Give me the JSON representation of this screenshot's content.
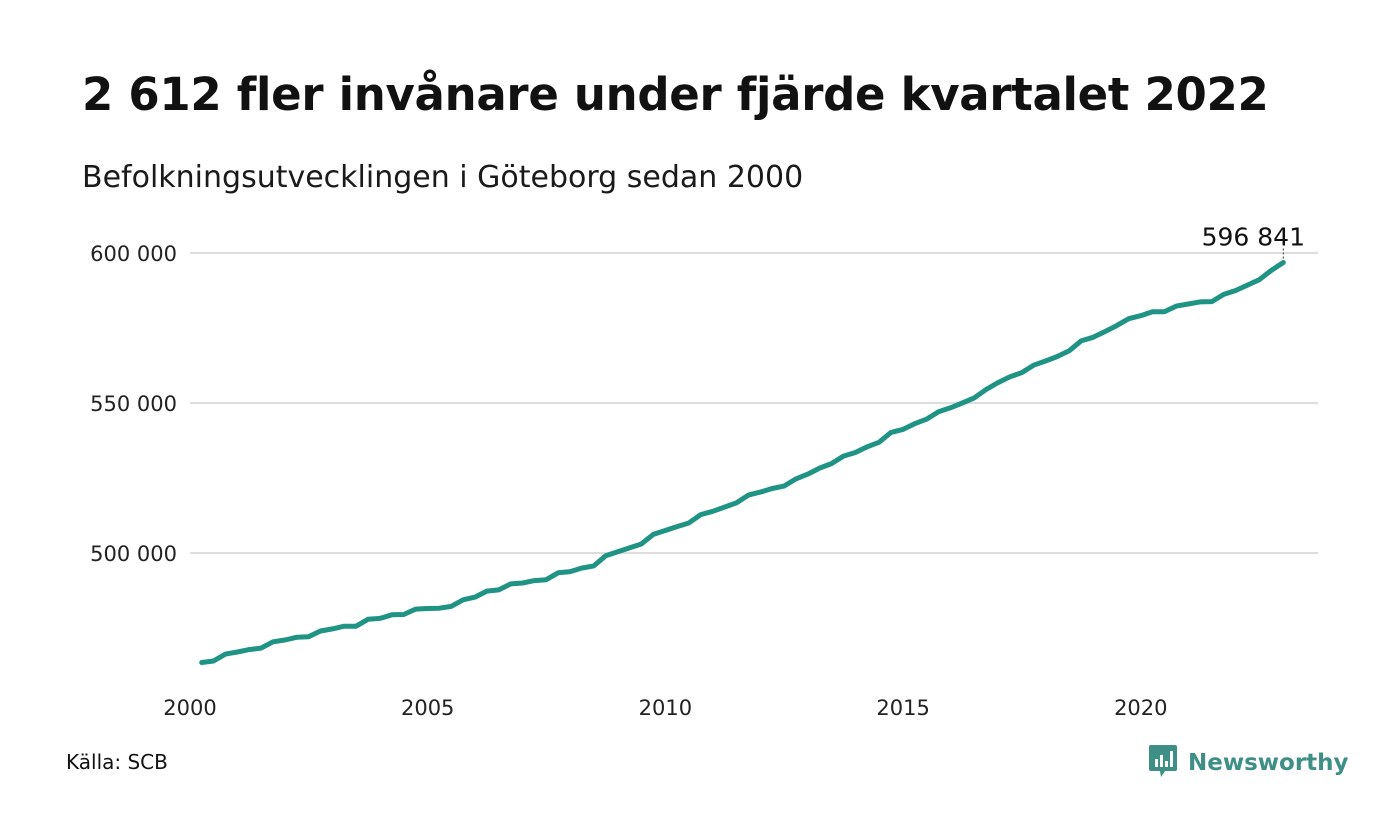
{
  "header": {
    "title": "2 612 fler invånare under fjärde kvartalet 2022",
    "subtitle": "Befolkningsutvecklingen i Göteborg sedan 2000"
  },
  "footer": {
    "source": "Källa: SCB",
    "brand": "Newsworthy",
    "brand_icon": "bar-chart-speech-bubble-icon"
  },
  "colors": {
    "line": "#1f9384",
    "grid": "#dddddd",
    "brand": "#3e8f86"
  },
  "chart_data": {
    "type": "line",
    "title": "2 612 fler invånare under fjärde kvartalet 2022",
    "subtitle": "Befolkningsutvecklingen i Göteborg sedan 2000",
    "xlabel": "",
    "ylabel": "",
    "x_ticks": [
      "2000",
      "2005",
      "2010",
      "2015",
      "2020"
    ],
    "x_tick_values": [
      2000,
      2005,
      2010,
      2015,
      2020
    ],
    "y_ticks": [
      "500 000",
      "550 000",
      "600 000"
    ],
    "y_tick_values": [
      500000,
      550000,
      600000
    ],
    "grid": "horizontal",
    "legend": "none",
    "last_value_label": "596 841",
    "series": [
      {
        "x": [
          "2000-03-31",
          "2000-06-30",
          "2000-09-30",
          "2000-12-31",
          "2001-03-31",
          "2001-06-30",
          "2001-09-30",
          "2001-12-31",
          "2002-03-31",
          "2002-06-30",
          "2002-09-30",
          "2002-12-31",
          "2003-03-31",
          "2003-06-30",
          "2003-09-30",
          "2003-12-31",
          "2004-03-31",
          "2004-06-30",
          "2004-09-30",
          "2004-12-31",
          "2005-03-31",
          "2005-06-30",
          "2005-09-30",
          "2005-12-31",
          "2006-03-31",
          "2006-06-30",
          "2006-09-30",
          "2006-12-31",
          "2007-03-31",
          "2007-06-30",
          "2007-09-30",
          "2007-12-31",
          "2008-03-31",
          "2008-06-30",
          "2008-09-30",
          "2008-12-31",
          "2009-03-31",
          "2009-06-30",
          "2009-09-30",
          "2009-12-31",
          "2010-03-31",
          "2010-06-30",
          "2010-09-30",
          "2010-12-31",
          "2011-03-31",
          "2011-06-30",
          "2011-09-30",
          "2011-12-31",
          "2012-03-31",
          "2012-06-30",
          "2012-09-30",
          "2012-12-31",
          "2013-03-31",
          "2013-06-30",
          "2013-09-30",
          "2013-12-31",
          "2014-03-31",
          "2014-06-30",
          "2014-09-30",
          "2014-12-31",
          "2015-03-31",
          "2015-06-30",
          "2015-09-30",
          "2015-12-31",
          "2016-03-31",
          "2016-06-30",
          "2016-09-30",
          "2016-12-31",
          "2017-03-31",
          "2017-06-30",
          "2017-09-30",
          "2017-12-31",
          "2018-03-31",
          "2018-06-30",
          "2018-09-30",
          "2018-12-31",
          "2019-03-31",
          "2019-06-30",
          "2019-09-30",
          "2019-12-31",
          "2020-03-31",
          "2020-06-30",
          "2020-09-30",
          "2020-12-31",
          "2021-03-31",
          "2021-06-30",
          "2021-09-30",
          "2021-12-31",
          "2022-03-31",
          "2022-06-30",
          "2022-09-30",
          "2022-12-31"
        ],
        "values": [
          463500,
          464000,
          466300,
          467000,
          467800,
          468300,
          470400,
          471000,
          471900,
          472100,
          474000,
          474700,
          475600,
          475600,
          477900,
          478200,
          479400,
          479500,
          481300,
          481500,
          481600,
          482200,
          484400,
          485300,
          487300,
          487700,
          489700,
          490000,
          490800,
          491100,
          493400,
          493800,
          495000,
          495700,
          499100,
          500400,
          501700,
          503000,
          506200,
          507500,
          508800,
          510000,
          512800,
          513900,
          515300,
          516700,
          519300,
          520300,
          521500,
          522300,
          524700,
          526300,
          528300,
          529800,
          532300,
          533500,
          535400,
          536900,
          540200,
          541200,
          543100,
          544600,
          547100,
          548400,
          550000,
          551700,
          554500,
          556800,
          558700,
          560100,
          562600,
          564000,
          565500,
          567400,
          570700,
          571900,
          573800,
          575800,
          578100,
          579100,
          580400,
          580400,
          582300,
          583000,
          583700,
          583800,
          586200,
          587500,
          589300,
          591100,
          594200,
          596841
        ]
      }
    ]
  }
}
